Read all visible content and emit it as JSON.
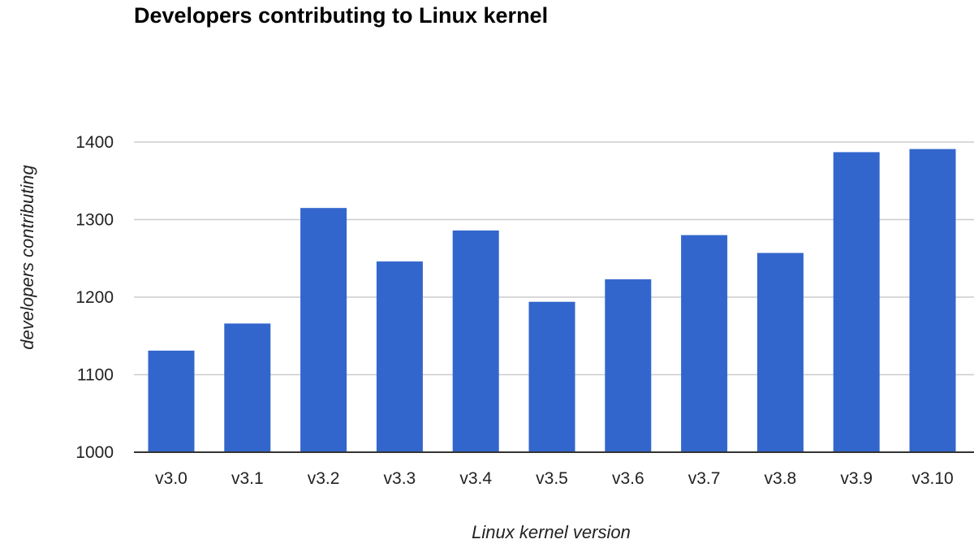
{
  "chart_data": {
    "type": "bar",
    "title": "Developers contributing to Linux kernel",
    "xlabel": "Linux kernel version",
    "ylabel": "developers contributing",
    "categories": [
      "v3.0",
      "v3.1",
      "v3.2",
      "v3.3",
      "v3.4",
      "v3.5",
      "v3.6",
      "v3.7",
      "v3.8",
      "v3.9",
      "v3.10"
    ],
    "values": [
      1131,
      1166,
      1315,
      1246,
      1286,
      1194,
      1223,
      1280,
      1257,
      1387,
      1391
    ],
    "ylim": [
      1000,
      1400
    ],
    "yticks": [
      "1000",
      "1100",
      "1200",
      "1300",
      "1400"
    ],
    "grid": true,
    "legend": "none",
    "bar_color": "#3366cc",
    "grid_color": "#cccccc",
    "axis_color": "#333333"
  }
}
